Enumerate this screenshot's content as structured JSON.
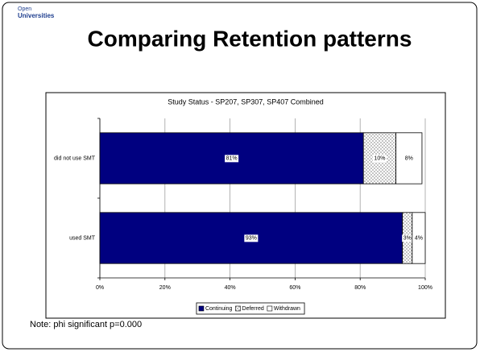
{
  "logo": {
    "line1": "Open",
    "line2": "Universities"
  },
  "title": "Comparing Retention patterns",
  "note": "Note: phi significant p=0.000",
  "chart_data": {
    "type": "stacked_barh",
    "title": "Study Status - SP207, SP307, SP407 Combined",
    "categories": [
      "did not use SMT",
      "used SMT"
    ],
    "series": [
      {
        "name": "Continuing",
        "color": "#000080",
        "values": [
          81,
          93
        ],
        "value_labels": [
          "81%",
          "93%"
        ]
      },
      {
        "name": "Deferred",
        "color": "#ffffff",
        "pattern": "dots",
        "values": [
          10,
          3
        ],
        "value_labels": [
          "10%",
          "3%"
        ]
      },
      {
        "name": "Withdrawn",
        "color": "#ffffff",
        "values": [
          8,
          4
        ],
        "value_labels": [
          "8%",
          "4%"
        ]
      }
    ],
    "xlim": [
      0,
      100
    ],
    "xticks": [
      {
        "value": 0,
        "label": "0%"
      },
      {
        "value": 20,
        "label": "20%"
      },
      {
        "value": 40,
        "label": "40%"
      },
      {
        "value": 60,
        "label": "60%"
      },
      {
        "value": 80,
        "label": "80%"
      },
      {
        "value": 100,
        "label": "100%"
      }
    ],
    "grid": true,
    "legend": "bottom"
  }
}
